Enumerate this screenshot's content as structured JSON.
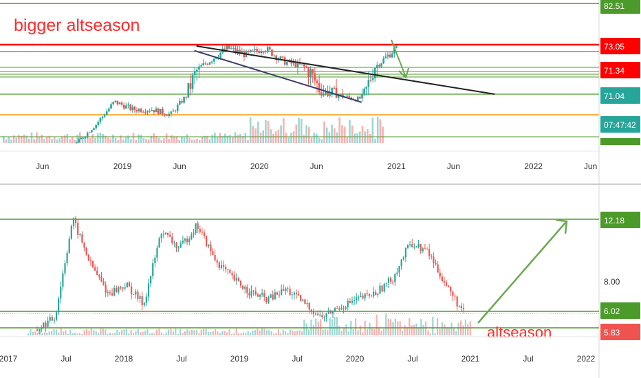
{
  "colors": {
    "up": "#26a69a",
    "down": "#ef5350",
    "support": "#4c9a2a",
    "resistance": "#ff0000",
    "orange": "#ff9800",
    "trendline": "#222222",
    "channel": "#3b3b6b",
    "arrow": "#6aa84f",
    "annotation": "#ff2b2b",
    "axis_text": "#333333"
  },
  "chart_data": [
    {
      "type": "candlestick",
      "title": "",
      "annotation": "bigger altseason",
      "x_ticks": [
        "Jun",
        "2019",
        "Jun",
        "2020",
        "Jun",
        "2021",
        "Jun",
        "2022",
        "Jun"
      ],
      "price_labels": [
        {
          "value": "82.51",
          "color": "#4c9a2a",
          "icon": "none"
        },
        {
          "value": "73.05",
          "color": "#ff0000",
          "icon": "none"
        },
        {
          "value": "71.34",
          "color": "#ff0000",
          "icon": "none"
        },
        {
          "value": "71.04",
          "color": "#26a69a",
          "icon": "none"
        },
        {
          "value": "07:47:42",
          "color": "#26a69a",
          "icon": "none"
        }
      ],
      "horizontal_levels": [
        "82.51",
        "73.05",
        "73.00",
        "71.60",
        "71.45",
        "71.34",
        "71.25",
        "71.04",
        "70.80",
        "70.50"
      ],
      "price_series": [
        66.5,
        68.6,
        70.4,
        69.8,
        69.8,
        69.4,
        71.2,
        72.1,
        72.9,
        72.5,
        72.9,
        72.1,
        71.8,
        71.1,
        70.9,
        70.6,
        71.9,
        72.9
      ],
      "price_series_ends": [
        "2018-09",
        "2021-01"
      ],
      "trendline": "falling from 2019-08 (73.0) to 2021-09 (71.1)",
      "projection_arrow": "down from 2021-01 toward 71.4",
      "volume": "histogram along bottom, green/red"
    },
    {
      "type": "candlestick",
      "title": "",
      "annotation": "altseason",
      "x_ticks": [
        "2017",
        "Jul",
        "2018",
        "Jul",
        "2019",
        "Jul",
        "2020",
        "Jul",
        "2021",
        "Jul",
        "2022"
      ],
      "price_labels": [
        {
          "value": "12.18",
          "color": "#4c9a2a"
        },
        {
          "value": "8.00",
          "color": "#ffffff"
        },
        {
          "value": "6.02",
          "color": "#4c9a2a"
        },
        {
          "value": "5.83",
          "color": "#ef5350"
        }
      ],
      "horizontal_levels": [
        "12.18",
        "6.02",
        "5.00"
      ],
      "price_series": [
        4.8,
        5.6,
        12.2,
        9.2,
        7.2,
        7.8,
        6.5,
        11.4,
        10.2,
        11.8,
        9.5,
        8.2,
        7.3,
        6.8,
        7.5,
        6.6,
        5.6,
        6.3,
        6.8,
        7.2,
        8.2,
        10.6,
        10.0,
        7.8,
        5.9
      ],
      "price_series_ends": [
        "2017-04",
        "2020-12"
      ],
      "projection_arrow": "up from 2021-01 (5.3) to 2021-11 (12.1)",
      "volume": "histogram along bottom, green/red"
    }
  ]
}
